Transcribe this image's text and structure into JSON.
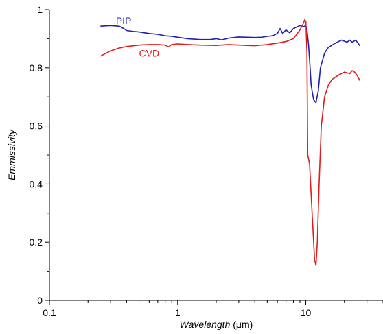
{
  "chart_data": {
    "type": "line",
    "xlabel": {
      "italic": "Wavelength",
      "unit": " (μm)"
    },
    "ylabel": "Emmissivity",
    "xscale": "log",
    "xlim": [
      0.1,
      40
    ],
    "ylim": [
      0,
      1
    ],
    "grid": false,
    "x_ticks": [
      {
        "value": 0.1,
        "label": "0.1"
      },
      {
        "value": 1,
        "label": "1"
      },
      {
        "value": 10,
        "label": "10"
      }
    ],
    "y_ticks": [
      {
        "value": 0,
        "label": "0"
      },
      {
        "value": 0.2,
        "label": "0.2"
      },
      {
        "value": 0.4,
        "label": "0.4"
      },
      {
        "value": 0.6,
        "label": "0.6"
      },
      {
        "value": 0.8,
        "label": "0.8"
      },
      {
        "value": 1,
        "label": "1"
      }
    ],
    "series": [
      {
        "name": "PIP",
        "color": "#1f1fb4",
        "label_at": [
          0.33,
          0.95
        ],
        "points": [
          [
            0.25,
            0.943
          ],
          [
            0.3,
            0.945
          ],
          [
            0.35,
            0.943
          ],
          [
            0.38,
            0.935
          ],
          [
            0.4,
            0.928
          ],
          [
            0.45,
            0.925
          ],
          [
            0.5,
            0.923
          ],
          [
            0.6,
            0.918
          ],
          [
            0.7,
            0.915
          ],
          [
            0.8,
            0.91
          ],
          [
            0.9,
            0.908
          ],
          [
            1.0,
            0.905
          ],
          [
            1.2,
            0.9
          ],
          [
            1.5,
            0.897
          ],
          [
            1.8,
            0.897
          ],
          [
            2.0,
            0.9
          ],
          [
            2.2,
            0.896
          ],
          [
            2.5,
            0.902
          ],
          [
            3.0,
            0.906
          ],
          [
            3.5,
            0.905
          ],
          [
            4.0,
            0.904
          ],
          [
            4.5,
            0.905
          ],
          [
            5.0,
            0.908
          ],
          [
            5.5,
            0.91
          ],
          [
            6.0,
            0.918
          ],
          [
            6.3,
            0.935
          ],
          [
            6.6,
            0.918
          ],
          [
            7.0,
            0.93
          ],
          [
            7.5,
            0.92
          ],
          [
            8.0,
            0.935
          ],
          [
            8.5,
            0.94
          ],
          [
            9.0,
            0.945
          ],
          [
            9.5,
            0.94
          ],
          [
            10.0,
            0.945
          ],
          [
            10.2,
            0.93
          ],
          [
            10.5,
            0.88
          ],
          [
            10.8,
            0.8
          ],
          [
            11.0,
            0.74
          ],
          [
            11.5,
            0.69
          ],
          [
            12.0,
            0.68
          ],
          [
            12.5,
            0.72
          ],
          [
            13.0,
            0.8
          ],
          [
            14.0,
            0.85
          ],
          [
            15.0,
            0.87
          ],
          [
            17.0,
            0.885
          ],
          [
            19.0,
            0.895
          ],
          [
            21.0,
            0.888
          ],
          [
            22.0,
            0.895
          ],
          [
            23.0,
            0.888
          ],
          [
            24.5,
            0.895
          ],
          [
            25.5,
            0.885
          ],
          [
            26.5,
            0.875
          ]
        ]
      },
      {
        "name": "CVD",
        "color": "#e01b1b",
        "label_at": [
          0.5,
          0.838
        ],
        "points": [
          [
            0.25,
            0.84
          ],
          [
            0.3,
            0.858
          ],
          [
            0.35,
            0.868
          ],
          [
            0.4,
            0.873
          ],
          [
            0.5,
            0.878
          ],
          [
            0.6,
            0.88
          ],
          [
            0.7,
            0.88
          ],
          [
            0.8,
            0.878
          ],
          [
            0.85,
            0.872
          ],
          [
            0.9,
            0.88
          ],
          [
            1.0,
            0.882
          ],
          [
            1.2,
            0.88
          ],
          [
            1.5,
            0.878
          ],
          [
            2.0,
            0.877
          ],
          [
            2.5,
            0.88
          ],
          [
            3.0,
            0.878
          ],
          [
            3.5,
            0.877
          ],
          [
            4.0,
            0.876
          ],
          [
            5.0,
            0.88
          ],
          [
            6.0,
            0.885
          ],
          [
            7.0,
            0.89
          ],
          [
            8.0,
            0.9
          ],
          [
            9.0,
            0.93
          ],
          [
            9.5,
            0.95
          ],
          [
            9.8,
            0.965
          ],
          [
            10.0,
            0.96
          ],
          [
            10.2,
            0.85
          ],
          [
            10.35,
            0.5
          ],
          [
            10.7,
            0.47
          ],
          [
            11.2,
            0.3
          ],
          [
            11.7,
            0.14
          ],
          [
            12.0,
            0.12
          ],
          [
            12.3,
            0.2
          ],
          [
            12.7,
            0.4
          ],
          [
            13.2,
            0.6
          ],
          [
            14.0,
            0.7
          ],
          [
            15.0,
            0.74
          ],
          [
            16.0,
            0.76
          ],
          [
            18.0,
            0.775
          ],
          [
            20.0,
            0.785
          ],
          [
            22.0,
            0.78
          ],
          [
            23.0,
            0.79
          ],
          [
            24.0,
            0.785
          ],
          [
            25.0,
            0.775
          ],
          [
            26.5,
            0.755
          ]
        ]
      }
    ]
  }
}
